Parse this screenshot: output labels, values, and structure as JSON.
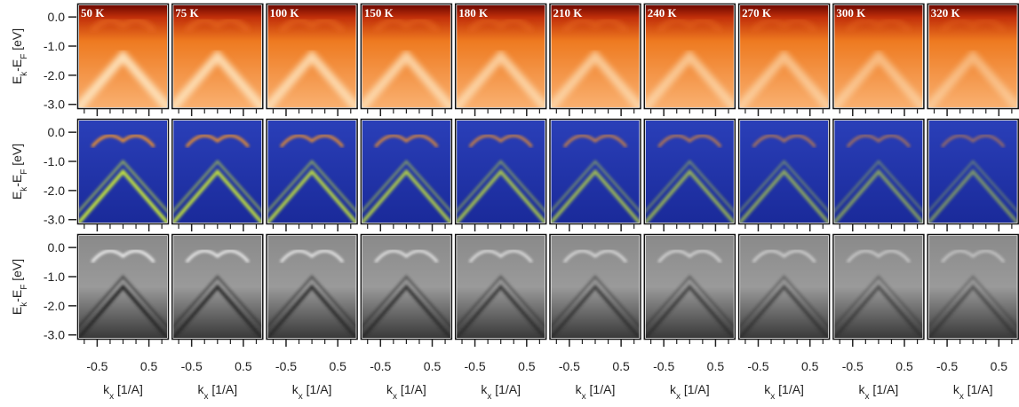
{
  "figure": {
    "panel_labels": [
      "50 K",
      "75 K",
      "100 K",
      "150 K",
      "180 K",
      "210 K",
      "240 K",
      "270 K",
      "300 K",
      "320 K"
    ],
    "y_axis": {
      "label": [
        "E",
        "k",
        "-E",
        "F",
        " [eV]"
      ],
      "lim": [
        -3.1,
        0.4
      ],
      "ticks": [
        {
          "value": 0,
          "label": "0.0"
        },
        {
          "value": -1,
          "label": "-1.0"
        },
        {
          "value": -2,
          "label": "-2.0"
        },
        {
          "value": -3,
          "label": "-3.0"
        }
      ]
    },
    "x_axis": {
      "label": [
        "k",
        "x",
        " [1/A]"
      ],
      "lim": [
        -0.85,
        0.85
      ],
      "ticks": [
        -0.5,
        0.5
      ],
      "minor_ticks": [
        -0.75,
        -0.25,
        0,
        0.25,
        0.75
      ]
    }
  }
}
